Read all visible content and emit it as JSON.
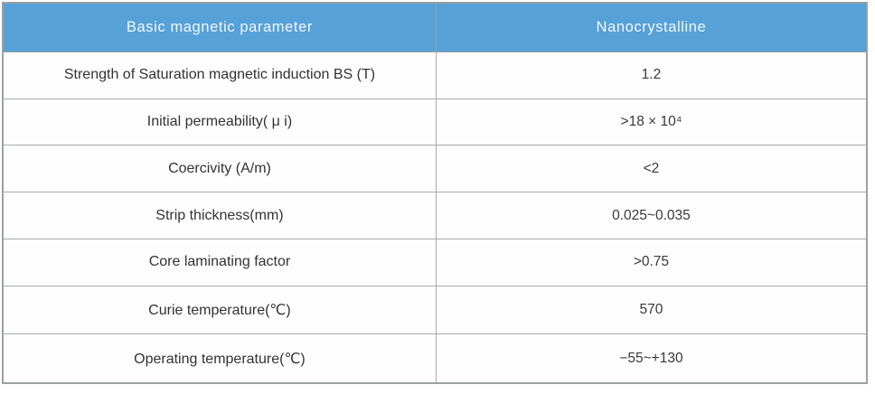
{
  "table": {
    "columns": [
      {
        "label": "Basic magnetic parameter"
      },
      {
        "label": "Nanocrystalline"
      }
    ],
    "rows": [
      {
        "parameter": "Strength of Saturation magnetic induction BS (T)",
        "value": "1.2"
      },
      {
        "parameter": "Initial permeability( μ i)",
        "value": ">18 × 10⁴"
      },
      {
        "parameter": "Coercivity (A/m)",
        "value": "<2"
      },
      {
        "parameter": "Strip thickness(mm)",
        "value": "0.025~0.035"
      },
      {
        "parameter": "Core laminating factor",
        "value": ">0.75"
      },
      {
        "parameter": "Curie temperature(℃)",
        "value": "570"
      },
      {
        "parameter": "Operating temperature(℃)",
        "value": "−55~+130"
      }
    ],
    "colors": {
      "header_bg": "#55A1D8",
      "header_text": "#F2F7FB",
      "body_text": "#333333",
      "border": "#9C9FA3"
    }
  }
}
